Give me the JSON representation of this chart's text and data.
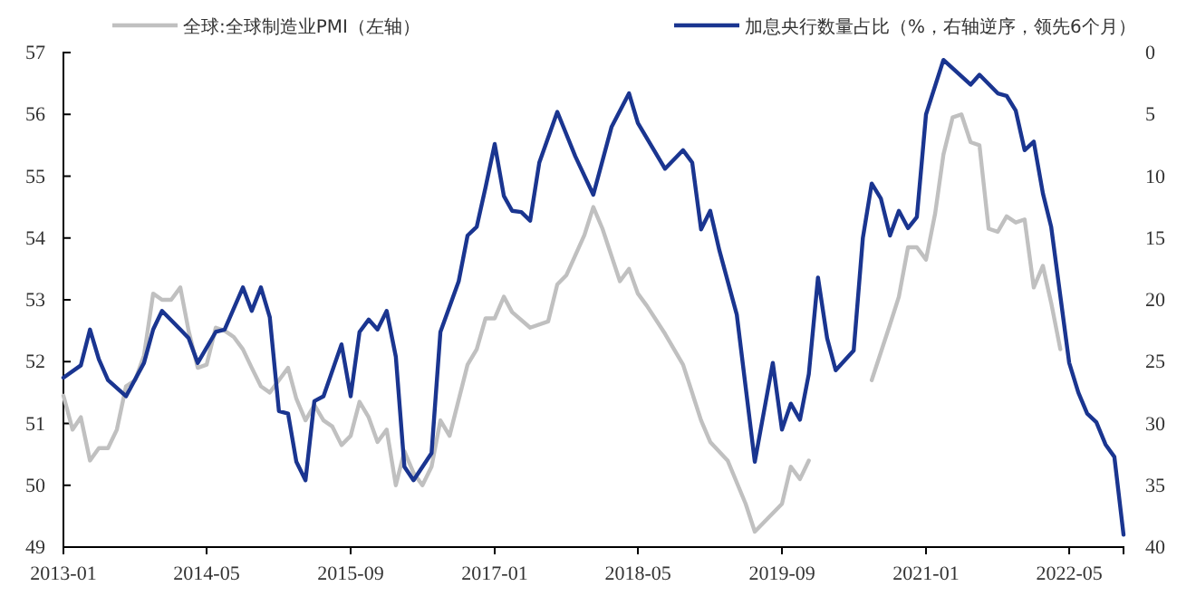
{
  "chart_data": {
    "type": "line",
    "legend": "top",
    "xlim": [
      "2013-01",
      "2022-11"
    ],
    "xticks": [
      "2013-01",
      "2014-05",
      "2015-09",
      "2017-01",
      "2018-05",
      "2019-09",
      "2021-01",
      "2022-05"
    ],
    "ylim": [
      49,
      57
    ],
    "yticks": [
      49,
      50,
      51,
      52,
      53,
      54,
      55,
      56,
      57
    ],
    "y2lim": [
      40,
      0
    ],
    "y2ticks": [
      0,
      5,
      10,
      15,
      20,
      25,
      30,
      35,
      40
    ],
    "series": [
      {
        "name": "全球:全球制造业PMI（左轴）",
        "color": "#c0c0c0",
        "x": [
          "2013-01",
          "2013-02",
          "2013-03",
          "2013-04",
          "2013-05",
          "2013-06",
          "2013-07",
          "2013-08",
          "2013-09",
          "2013-10",
          "2013-11",
          "2013-12",
          "2014-01",
          "2014-02",
          "2014-03",
          "2014-04",
          "2014-05",
          "2014-06",
          "2014-07",
          "2014-08",
          "2014-09",
          "2014-10",
          "2014-11",
          "2014-12",
          "2015-01",
          "2015-02",
          "2015-03",
          "2015-04",
          "2015-05",
          "2015-06",
          "2015-07",
          "2015-08",
          "2015-09",
          "2015-10",
          "2015-11",
          "2015-12",
          "2016-01",
          "2016-02",
          "2016-03",
          "2016-04",
          "2016-05",
          "2016-06",
          "2016-07",
          "2016-08",
          "2016-10",
          "2016-11",
          "2016-12",
          "2017-01",
          "2017-02",
          "2017-03",
          "2017-05",
          "2017-07",
          "2017-08",
          "2017-09",
          "2017-11",
          "2017-12",
          "2018-01",
          "2018-03",
          "2018-04",
          "2018-05",
          "2018-06",
          "2018-08",
          "2018-10",
          "2018-12",
          "2019-01",
          "2019-03",
          "2019-05",
          "2019-06",
          "2019-09",
          "2019-10",
          "2019-11",
          "2019-12",
          "2020-01",
          "2020-06",
          "2020-07",
          "2020-09",
          "2020-10",
          "2020-11",
          "2020-12",
          "2021-01",
          "2021-02",
          "2021-03",
          "2021-04",
          "2021-05",
          "2021-06",
          "2021-07",
          "2021-08",
          "2021-09",
          "2021-10",
          "2021-11",
          "2021-12",
          "2022-01",
          "2022-02",
          "2022-03",
          "2022-04"
        ],
        "values": [
          51.45,
          50.9,
          51.1,
          50.4,
          50.6,
          50.6,
          50.9,
          51.6,
          51.7,
          52.1,
          53.1,
          53.0,
          53.0,
          53.2,
          52.5,
          51.9,
          51.95,
          52.55,
          52.5,
          52.4,
          52.2,
          51.9,
          51.6,
          51.5,
          51.7,
          51.9,
          51.4,
          51.05,
          51.3,
          51.05,
          50.95,
          50.65,
          50.8,
          51.35,
          51.1,
          50.7,
          50.9,
          50.0,
          50.55,
          50.2,
          50.0,
          50.3,
          51.05,
          50.8,
          51.95,
          52.2,
          52.7,
          52.7,
          53.05,
          52.8,
          52.55,
          52.65,
          53.25,
          53.4,
          54.05,
          54.5,
          54.15,
          53.3,
          53.5,
          53.1,
          52.9,
          52.45,
          51.95,
          51.05,
          50.7,
          50.4,
          49.7,
          49.25,
          49.7,
          50.3,
          50.1,
          50.4,
          null,
          null,
          51.7,
          52.6,
          53.05,
          53.85,
          53.85,
          53.65,
          54.4,
          55.35,
          55.95,
          56.0,
          55.55,
          55.5,
          54.15,
          54.1,
          54.35,
          54.25,
          54.3,
          53.2,
          53.55,
          52.95,
          52.2
        ]
      },
      {
        "name": "加息央行数量占比（%，右轴逆序，领先6个月）",
        "color": "#1a3590",
        "axis": "y2",
        "x": [
          "2013-01",
          "2013-03",
          "2013-04",
          "2013-05",
          "2013-06",
          "2013-08",
          "2013-10",
          "2013-11",
          "2013-12",
          "2014-02",
          "2014-03",
          "2014-04",
          "2014-06",
          "2014-07",
          "2014-09",
          "2014-10",
          "2014-11",
          "2014-12",
          "2015-01",
          "2015-02",
          "2015-03",
          "2015-04",
          "2015-05",
          "2015-06",
          "2015-08",
          "2015-09",
          "2015-10",
          "2015-11",
          "2015-12",
          "2016-01",
          "2016-02",
          "2016-03",
          "2016-04",
          "2016-06",
          "2016-07",
          "2016-09",
          "2016-10",
          "2016-11",
          "2016-12",
          "2017-01",
          "2017-02",
          "2017-03",
          "2017-04",
          "2017-05",
          "2017-06",
          "2017-08",
          "2017-10",
          "2017-12",
          "2018-02",
          "2018-04",
          "2018-05",
          "2018-08",
          "2018-10",
          "2018-11",
          "2018-12",
          "2019-01",
          "2019-02",
          "2019-04",
          "2019-06",
          "2019-08",
          "2019-09",
          "2019-10",
          "2019-11",
          "2019-12",
          "2020-01",
          "2020-02",
          "2020-03",
          "2020-05",
          "2020-06",
          "2020-07",
          "2020-08",
          "2020-09",
          "2020-10",
          "2020-11",
          "2020-12",
          "2021-01",
          "2021-03",
          "2021-06",
          "2021-07",
          "2021-09",
          "2021-10",
          "2021-11",
          "2021-12",
          "2022-01",
          "2022-02",
          "2022-03",
          "2022-04",
          "2022-05",
          "2022-06",
          "2022-07",
          "2022-08",
          "2022-09",
          "2022-10",
          "2022-11"
        ],
        "values": [
          26.3,
          25.3,
          22.4,
          24.8,
          26.5,
          27.8,
          25.1,
          22.4,
          20.9,
          22.4,
          23.1,
          25.1,
          22.6,
          22.4,
          19.0,
          20.9,
          19.0,
          21.4,
          29.0,
          29.2,
          33.1,
          34.6,
          28.2,
          27.8,
          23.6,
          27.8,
          22.6,
          21.6,
          22.4,
          20.9,
          24.6,
          33.5,
          34.6,
          32.4,
          22.6,
          18.5,
          14.8,
          14.1,
          10.9,
          7.4,
          11.6,
          12.8,
          12.9,
          13.6,
          8.9,
          4.8,
          8.4,
          11.5,
          6.0,
          3.3,
          5.7,
          9.4,
          7.9,
          8.9,
          14.3,
          12.8,
          16.0,
          21.2,
          33.1,
          25.1,
          30.5,
          28.4,
          29.7,
          26.0,
          18.2,
          23.1,
          25.7,
          24.1,
          15.0,
          10.6,
          11.8,
          14.8,
          12.8,
          14.2,
          13.3,
          5.0,
          0.6,
          2.6,
          1.8,
          3.3,
          3.5,
          4.7,
          7.9,
          7.2,
          11.4,
          14.1,
          19.7,
          25.1,
          27.5,
          29.2,
          29.9,
          31.7,
          32.7,
          39.0
        ]
      }
    ]
  }
}
